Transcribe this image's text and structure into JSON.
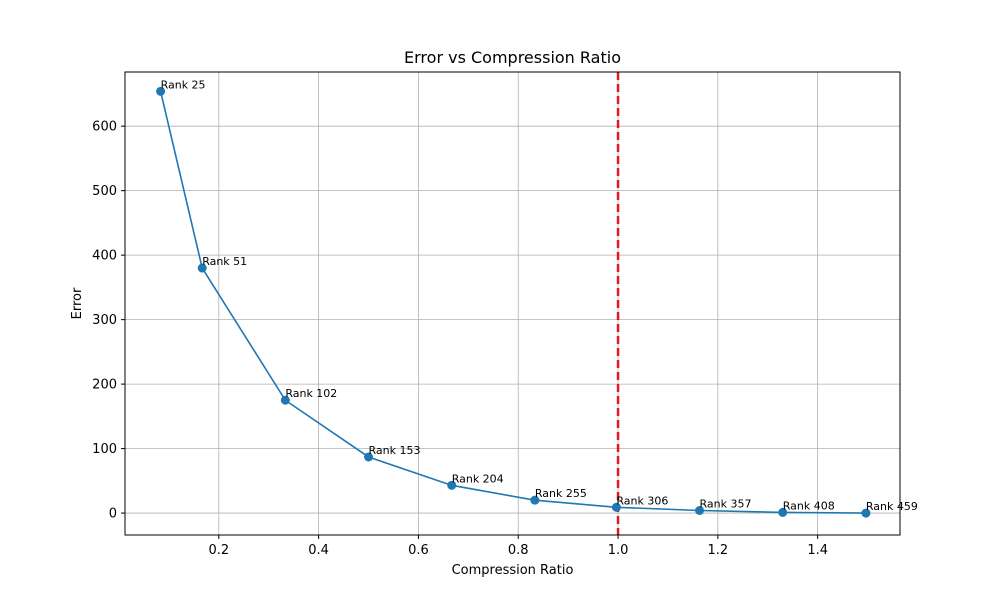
{
  "chart_data": {
    "type": "line",
    "title": "Error vs Compression Ratio",
    "xlabel": "Compression Ratio",
    "ylabel": "Error",
    "xlim": [
      0.012,
      1.565
    ],
    "ylim": [
      -34,
      684
    ],
    "x_ticks": [
      0.2,
      0.4,
      0.6,
      0.8,
      1.0,
      1.2,
      1.4
    ],
    "y_ticks": [
      0,
      100,
      200,
      300,
      400,
      500,
      600
    ],
    "grid": true,
    "series": [
      {
        "color": "#1f77b4",
        "x": [
          0.0833,
          0.1667,
          0.3333,
          0.5,
          0.6667,
          0.8333,
          0.9967,
          1.1633,
          1.33,
          1.4967
        ],
        "y": [
          654,
          380,
          175,
          87,
          43,
          20,
          9,
          4,
          1,
          0
        ],
        "labels": [
          "Rank 25",
          "Rank 51",
          "Rank 102",
          "Rank 153",
          "Rank 204",
          "Rank 255",
          "Rank 306",
          "Rank 357",
          "Rank 408",
          "Rank 459"
        ]
      }
    ],
    "reference_line": {
      "orientation": "vertical",
      "x": 1.0,
      "color": "#e31a1c",
      "style": "dashed"
    }
  }
}
